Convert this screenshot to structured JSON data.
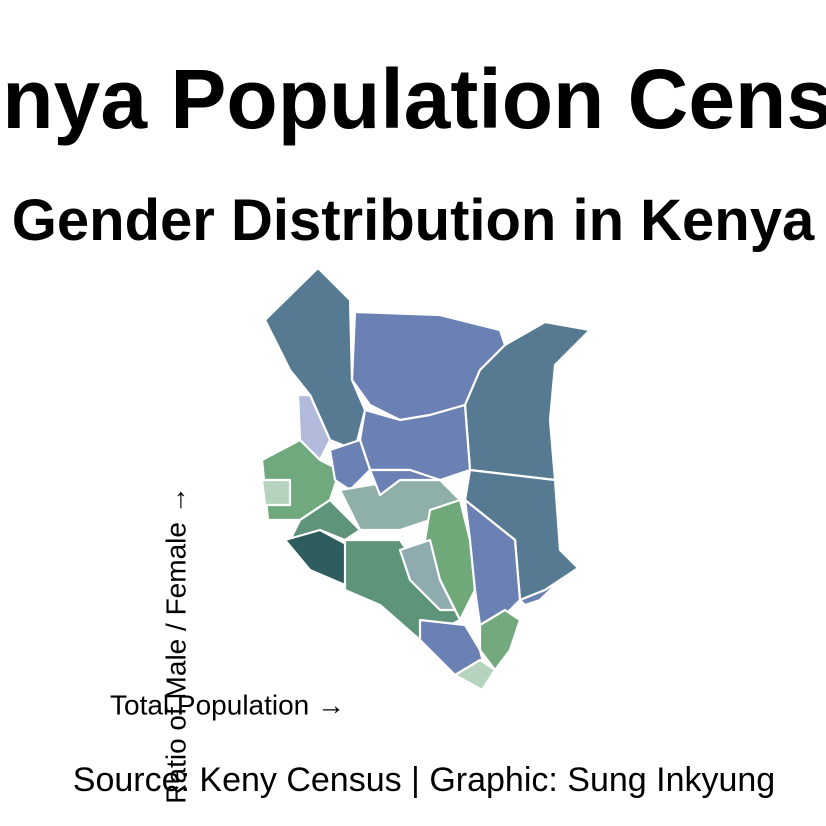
{
  "title": "Kenya Population Census",
  "subtitle": "Gender Distribution in Kenya",
  "legend": {
    "x_label": "Total Population →",
    "y_label": "Ratio of Male / Female →"
  },
  "caption": "Source: Keny Census | Graphic: Sung Inkyung"
}
